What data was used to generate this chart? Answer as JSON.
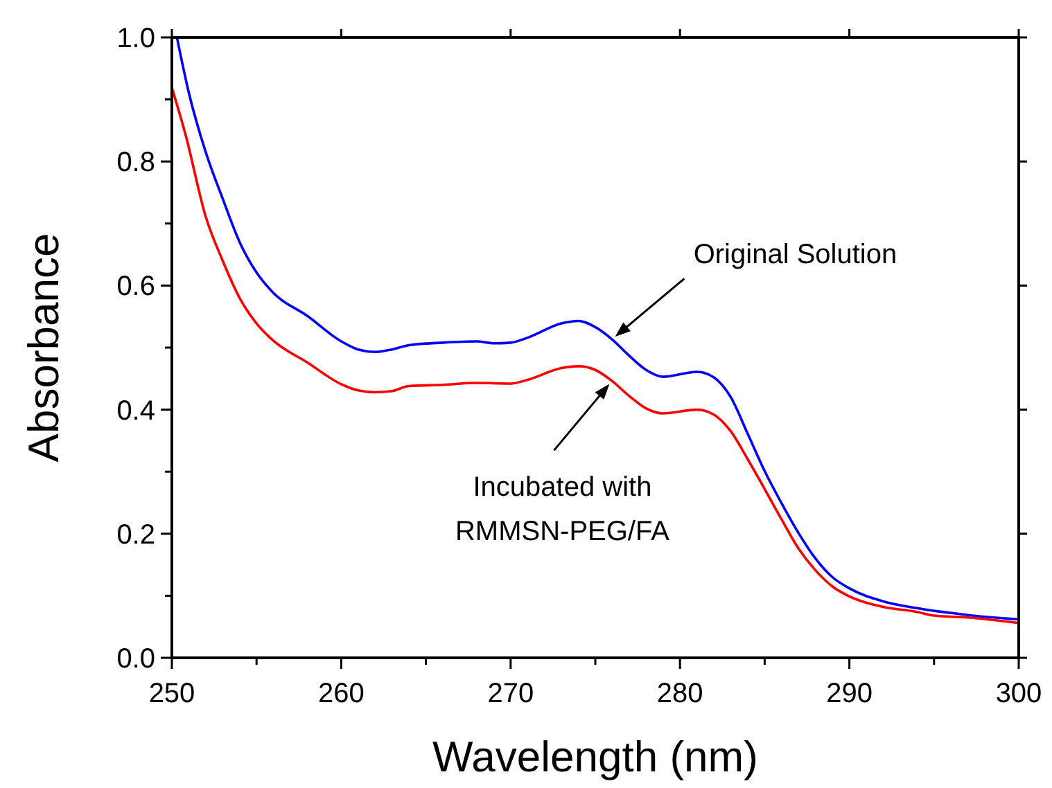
{
  "chart_data": {
    "type": "line",
    "xlabel": "Wavelength (nm)",
    "ylabel": "Absorbance",
    "xlim": [
      250,
      300
    ],
    "xticks": [
      250,
      260,
      270,
      280,
      290,
      300
    ],
    "ylim": [
      0,
      1.0
    ],
    "yticks": [
      {
        "value": 0,
        "label": "0.0"
      },
      0.2,
      0.4,
      0.6,
      0.8,
      {
        "value": 1.0,
        "label": "1.0"
      }
    ],
    "grid": false,
    "marker": "none",
    "line_style": "solid",
    "series": [
      {
        "color": "#0000ff",
        "x": [
          250.3,
          251,
          252,
          253,
          254,
          255,
          256,
          258,
          260,
          261,
          262,
          263,
          264,
          266,
          268,
          269,
          270,
          271,
          273,
          274,
          275,
          276,
          277,
          278,
          279,
          281,
          282,
          283,
          284,
          285,
          286,
          287,
          288,
          289,
          290,
          292,
          294,
          297,
          300
        ],
        "values": [
          1.0,
          0.911,
          0.815,
          0.74,
          0.67,
          0.621,
          0.588,
          0.551,
          0.51,
          0.497,
          0.493,
          0.497,
          0.504,
          0.508,
          0.51,
          0.507,
          0.508,
          0.516,
          0.539,
          0.543,
          0.533,
          0.513,
          0.487,
          0.464,
          0.453,
          0.461,
          0.452,
          0.42,
          0.361,
          0.301,
          0.249,
          0.201,
          0.16,
          0.13,
          0.112,
          0.091,
          0.08,
          0.069,
          0.062
        ]
      },
      {
        "color": "#ff0000",
        "x": [
          250,
          250.8,
          252,
          253,
          254,
          255,
          256,
          258,
          260,
          261,
          262,
          263,
          264,
          266,
          268,
          270,
          271,
          273,
          274,
          275,
          276,
          277,
          278,
          279,
          281,
          282,
          283,
          284,
          285,
          286,
          287,
          288,
          289,
          290,
          292,
          294,
          295,
          297,
          300
        ],
        "values": [
          0.919,
          0.844,
          0.711,
          0.64,
          0.58,
          0.539,
          0.511,
          0.476,
          0.441,
          0.431,
          0.428,
          0.43,
          0.438,
          0.44,
          0.443,
          0.442,
          0.448,
          0.467,
          0.47,
          0.464,
          0.446,
          0.422,
          0.402,
          0.394,
          0.4,
          0.392,
          0.365,
          0.32,
          0.272,
          0.223,
          0.176,
          0.141,
          0.115,
          0.099,
          0.082,
          0.074,
          0.068,
          0.065,
          0.056
        ]
      }
    ],
    "annotations": [
      {
        "text": "Original Solution",
        "x": 276,
        "y": 0.513
      },
      {
        "text": "Incubated with\nRMMSN-PEG/FA",
        "x": 276,
        "y": 0.446
      }
    ]
  }
}
